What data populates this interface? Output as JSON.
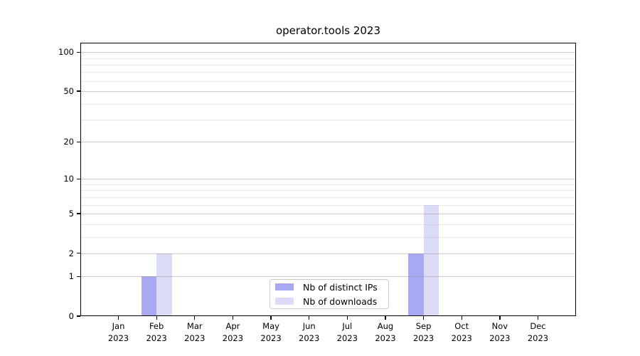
{
  "chart_data": {
    "type": "bar",
    "title": "operator.tools 2023",
    "categories": [
      "Jan 2023",
      "Feb 2023",
      "Mar 2023",
      "Apr 2023",
      "May 2023",
      "Jun 2023",
      "Jul 2023",
      "Aug 2023",
      "Sep 2023",
      "Oct 2023",
      "Nov 2023",
      "Dec 2023"
    ],
    "series": [
      {
        "name": "Nb of distinct IPs",
        "color": "#a9a9f3",
        "values": [
          0,
          1,
          0,
          0,
          0,
          0,
          0,
          0,
          2,
          0,
          0,
          0
        ]
      },
      {
        "name": "Nb of downloads",
        "color": "#dbdbf8",
        "values": [
          0,
          2,
          0,
          0,
          0,
          0,
          0,
          0,
          6,
          0,
          0,
          0
        ]
      }
    ],
    "y_axis": {
      "scale": "log1p",
      "tick_values": [
        0,
        1,
        2,
        5,
        10,
        20,
        50,
        100
      ],
      "tick_labels": [
        "0",
        "1",
        "2",
        "5",
        "10",
        "20",
        "50",
        "100"
      ],
      "minor_gridline_values": [
        3,
        4,
        6,
        7,
        8,
        9,
        30,
        40,
        60,
        70,
        80,
        90
      ],
      "ylim": [
        0,
        117
      ]
    },
    "grid": true,
    "legend_position": "lower center"
  },
  "colors": {
    "background": "#ffffff",
    "axis": "#000000",
    "grid_major": "#d0d0d0",
    "grid_minor": "#ececec",
    "legend_border": "#cccccc",
    "bar_distinct_ips": "#a9a9f3",
    "bar_downloads": "#dbdbf8"
  }
}
